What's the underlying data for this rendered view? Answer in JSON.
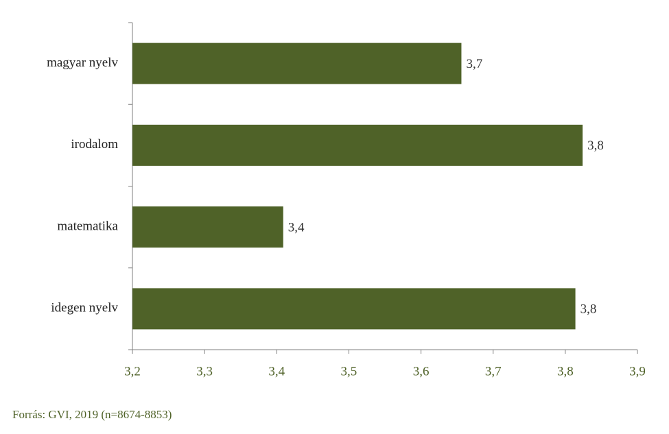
{
  "chart_data": {
    "type": "bar",
    "orientation": "horizontal",
    "categories": [
      "magyar nyelv",
      "irodalom",
      "matematika",
      "idegen nyelv"
    ],
    "values": [
      3.656,
      3.824,
      3.409,
      3.814
    ],
    "value_labels": [
      "3,7",
      "3,8",
      "3,4",
      "3,8"
    ],
    "color": "#4f6228",
    "xlim": [
      3.2,
      3.9
    ],
    "xticks": [
      {
        "value": 3.2,
        "label": "3,2"
      },
      {
        "value": 3.3,
        "label": "3,3"
      },
      {
        "value": 3.4,
        "label": "3,4"
      },
      {
        "value": 3.5,
        "label": "3,5"
      },
      {
        "value": 3.6,
        "label": "3,6"
      },
      {
        "value": 3.7,
        "label": "3,7"
      },
      {
        "value": 3.8,
        "label": "3,8"
      },
      {
        "value": 3.9,
        "label": "3,9"
      }
    ],
    "grid": false,
    "source": "Forrás: GVI, 2019 (n=8674-8853)"
  }
}
